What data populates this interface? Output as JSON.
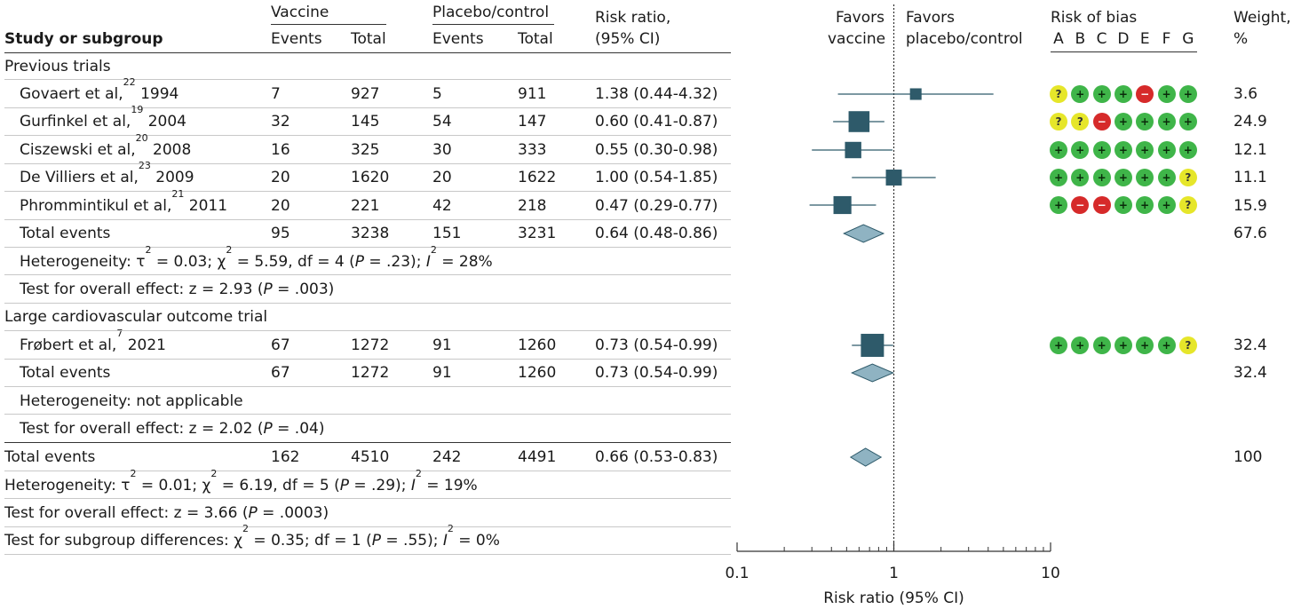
{
  "headers": {
    "study": "Study or subgroup",
    "vaccine": "Vaccine",
    "placebo": "Placebo/control",
    "events": "Events",
    "total": "Total",
    "rr_line1": "Risk ratio,",
    "rr_line2": "(95% CI)",
    "favors_left_1": "Favors",
    "favors_left_2": "vaccine",
    "favors_right_1": "Favors",
    "favors_right_2": "placebo/control",
    "rob_title": "Risk of bias",
    "rob_letters": [
      "A",
      "B",
      "C",
      "D",
      "E",
      "F",
      "G"
    ],
    "weight_1": "Weight,",
    "weight_2": "%"
  },
  "groups": {
    "previous": "Previous trials",
    "large": "Large cardiovascular outcome trial"
  },
  "studies": [
    {
      "name": "Govaert et al,",
      "ref": "22",
      "year": "1994",
      "ve": "7",
      "vt": "927",
      "pe": "5",
      "pt": "911",
      "rr": "1.38 (0.44-4.32)",
      "w": "3.6",
      "rob": [
        "some",
        "low",
        "low",
        "low",
        "high",
        "low",
        "low"
      ]
    },
    {
      "name": "Gurfinkel et al,",
      "ref": "19",
      "year": "2004",
      "ve": "32",
      "vt": "145",
      "pe": "54",
      "pt": "147",
      "rr": "0.60 (0.41-0.87)",
      "w": "24.9",
      "rob": [
        "some",
        "some",
        "high",
        "low",
        "low",
        "low",
        "low"
      ]
    },
    {
      "name": "Ciszewski et al,",
      "ref": "20",
      "year": "2008",
      "ve": "16",
      "vt": "325",
      "pe": "30",
      "pt": "333",
      "rr": "0.55 (0.30-0.98)",
      "w": "12.1",
      "rob": [
        "low",
        "low",
        "low",
        "low",
        "low",
        "low",
        "low"
      ]
    },
    {
      "name": "De Villiers et al,",
      "ref": "23",
      "year": "2009",
      "ve": "20",
      "vt": "1620",
      "pe": "20",
      "pt": "1622",
      "rr": "1.00 (0.54-1.85)",
      "w": "11.1",
      "rob": [
        "low",
        "low",
        "low",
        "low",
        "low",
        "low",
        "some"
      ]
    },
    {
      "name": "Phrommintikul et al,",
      "ref": "21",
      "year": "2011",
      "ve": "20",
      "vt": "221",
      "pe": "42",
      "pt": "218",
      "rr": "0.47 (0.29-0.77)",
      "w": "15.9",
      "rob": [
        "low",
        "high",
        "high",
        "low",
        "low",
        "low",
        "some"
      ]
    },
    {
      "name": "Frøbert et al,",
      "ref": "7",
      "year": "2021",
      "ve": "67",
      "vt": "1272",
      "pe": "91",
      "pt": "1260",
      "rr": "0.73 (0.54-0.99)",
      "w": "32.4",
      "rob": [
        "low",
        "low",
        "low",
        "low",
        "low",
        "low",
        "some"
      ]
    }
  ],
  "totals": [
    {
      "label": "Total events",
      "ve": "95",
      "vt": "3238",
      "pe": "151",
      "pt": "3231",
      "rr": "0.64 (0.48-0.86)",
      "w": "67.6"
    },
    {
      "label": "Total events",
      "ve": "67",
      "vt": "1272",
      "pe": "91",
      "pt": "1260",
      "rr": "0.73 (0.54-0.99)",
      "w": "32.4"
    },
    {
      "label": "Total events",
      "ve": "162",
      "vt": "4510",
      "pe": "242",
      "pt": "4491",
      "rr": "0.66 (0.53-0.83)",
      "w": "100"
    }
  ],
  "stats": {
    "het1_a": "Heterogeneity: τ",
    "het1_b": " = 0.03; χ",
    "het1_c": " = 5.59, df = 4 (",
    "het1_d": " = .23); ",
    "het1_e": " = 28%",
    "test1_a": "Test for overall effect: z = 2.93 (",
    "test1_b": " = .003)",
    "het2": "Heterogeneity: not applicable",
    "test2_a": "Test for overall effect: z = 2.02 (",
    "test2_b": " = .04)",
    "het3_a": "Heterogeneity: τ",
    "het3_b": " = 0.01; χ",
    "het3_c": " = 6.19, df = 5 (",
    "het3_d": " = .29); ",
    "het3_e": " = 19%",
    "test3_a": "Test for overall effect: z = 3.66 (",
    "test3_b": " = .0003)",
    "sub_a": "Test for subgroup differences: χ",
    "sub_b": " = 0.35; df = 1 (",
    "sub_c": " = .55); ",
    "sub_d": " = 0%",
    "P": "P",
    "I": "I",
    "two": "2"
  },
  "rob_symbols": {
    "low": "+",
    "some": "?",
    "high": "−"
  },
  "colors": {
    "marker": "#2e5a6a",
    "diamond": "#8fb3c2",
    "low": "#3fb549",
    "some": "#e6e62a",
    "high": "#d62a2a"
  },
  "chart_data": {
    "type": "forest",
    "xlabel": "Risk ratio (95% CI)",
    "xscale": "log",
    "xlim": [
      0.1,
      10
    ],
    "xticks": [
      0.1,
      1,
      10
    ],
    "xtick_labels": [
      "0.1",
      "1",
      "10"
    ],
    "null_line": 1,
    "studies": [
      {
        "study": "Govaert et al, 1994",
        "rr": 1.38,
        "lo": 0.44,
        "hi": 4.32,
        "weight": 3.6
      },
      {
        "study": "Gurfinkel et al, 2004",
        "rr": 0.6,
        "lo": 0.41,
        "hi": 0.87,
        "weight": 24.9
      },
      {
        "study": "Ciszewski et al, 2008",
        "rr": 0.55,
        "lo": 0.3,
        "hi": 0.98,
        "weight": 12.1
      },
      {
        "study": "De Villiers et al, 2009",
        "rr": 1.0,
        "lo": 0.54,
        "hi": 1.85,
        "weight": 11.1
      },
      {
        "study": "Phrommintikul et al, 2011",
        "rr": 0.47,
        "lo": 0.29,
        "hi": 0.77,
        "weight": 15.9
      },
      {
        "study": "Frøbert et al, 2021",
        "rr": 0.73,
        "lo": 0.54,
        "hi": 0.99,
        "weight": 32.4
      }
    ],
    "pooled": [
      {
        "label": "Previous trials total",
        "rr": 0.64,
        "lo": 0.48,
        "hi": 0.86
      },
      {
        "label": "Large cardiovascular outcome trial total",
        "rr": 0.73,
        "lo": 0.54,
        "hi": 0.99
      },
      {
        "label": "Overall total",
        "rr": 0.66,
        "lo": 0.53,
        "hi": 0.83
      }
    ]
  }
}
